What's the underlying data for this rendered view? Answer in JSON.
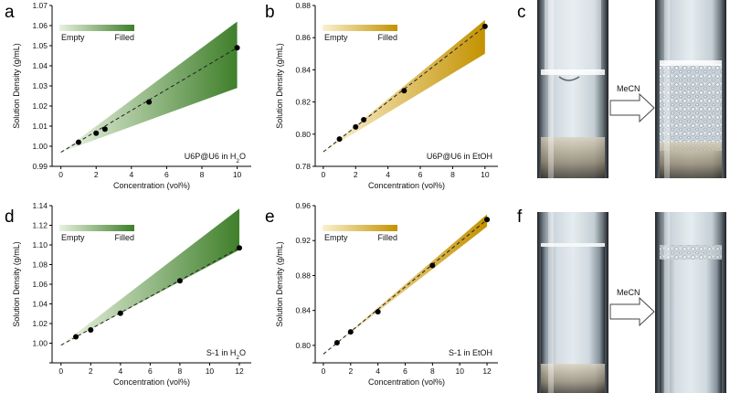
{
  "figure": {
    "colors": {
      "green_dark": "#3f7f2a",
      "green_light": "#e8f1df",
      "gold_dark": "#c49200",
      "gold_light": "#fbf1d0",
      "arrow_fill": "#ffffff",
      "arrow_stroke": "#444444"
    }
  },
  "chart_data": [
    {
      "id": "a",
      "panel_letter": "a",
      "type": "scatter",
      "theme": "green",
      "xlabel": "Concentration (vol%)",
      "ylabel": "Solution Density (g/mL)",
      "xlim": [
        -0.5,
        10.8
      ],
      "ylim": [
        0.99,
        1.07
      ],
      "xticks": [
        0,
        2,
        4,
        6,
        8,
        10
      ],
      "yticks": [
        0.99,
        1.0,
        1.01,
        1.02,
        1.03,
        1.04,
        1.05,
        1.06,
        1.07
      ],
      "ytick_labels": [
        "0.99",
        "1.00",
        "1.01",
        "1.02",
        "1.03",
        "1.04",
        "1.05",
        "1.06",
        "1.07"
      ],
      "x": [
        1,
        2,
        2.5,
        5,
        10
      ],
      "y": [
        1.002,
        1.0065,
        1.0085,
        1.022,
        1.049
      ],
      "fit_line": {
        "x": [
          0,
          10
        ],
        "y": [
          0.997,
          1.049
        ]
      },
      "region": {
        "x0": 0,
        "y0": 0.997,
        "x1": 10,
        "y_low": 1.029,
        "y_high": 1.062
      },
      "legend": {
        "empty": "Empty",
        "filled": "Filled"
      },
      "annotation": {
        "main": "U6P@U6 in H",
        "sub": "2",
        "tail": "O"
      }
    },
    {
      "id": "b",
      "panel_letter": "b",
      "type": "scatter",
      "theme": "gold",
      "xlabel": "Concentration (vol%)",
      "ylabel": "Solution Density (g/mL)",
      "xlim": [
        -0.5,
        10.8
      ],
      "ylim": [
        0.78,
        0.88
      ],
      "xticks": [
        0,
        2,
        4,
        6,
        8,
        10
      ],
      "yticks": [
        0.78,
        0.8,
        0.82,
        0.84,
        0.86,
        0.88
      ],
      "ytick_labels": [
        "0.78",
        "0.80",
        "0.82",
        "0.84",
        "0.86",
        "0.88"
      ],
      "x": [
        1,
        2,
        2.5,
        5,
        10
      ],
      "y": [
        0.797,
        0.8045,
        0.809,
        0.827,
        0.867
      ],
      "fit_line": {
        "x": [
          0,
          10
        ],
        "y": [
          0.789,
          0.867
        ]
      },
      "region": {
        "x0": 0,
        "y0": 0.789,
        "x1": 10,
        "y_low": 0.85,
        "y_high": 0.871
      },
      "legend": {
        "empty": "Empty",
        "filled": "Filled"
      },
      "annotation": {
        "main": "U6P@U6 in EtOH",
        "sub": "",
        "tail": ""
      }
    },
    {
      "id": "d",
      "panel_letter": "d",
      "type": "scatter",
      "theme": "green",
      "xlabel": "Concentration (vol%)",
      "ylabel": "Solution Density (g/mL)",
      "xlim": [
        -0.6,
        12.8
      ],
      "ylim": [
        0.98,
        1.14
      ],
      "xticks": [
        0,
        2,
        4,
        6,
        8,
        10,
        12
      ],
      "yticks": [
        0.98,
        1.0,
        1.02,
        1.04,
        1.06,
        1.08,
        1.1,
        1.12,
        1.14
      ],
      "ytick_labels": [
        "",
        "1.00",
        "1.02",
        "1.04",
        "1.06",
        "1.08",
        "1.10",
        "1.12",
        "1.14"
      ],
      "x": [
        1,
        2,
        4,
        8,
        12
      ],
      "y": [
        1.0065,
        1.0135,
        1.0305,
        1.0635,
        1.097
      ],
      "fit_line": {
        "x": [
          0,
          12
        ],
        "y": [
          0.998,
          1.097
        ]
      },
      "region": {
        "x0": 0,
        "y0": 0.998,
        "x1": 12,
        "y_low": 1.095,
        "y_high": 1.137
      },
      "legend": {
        "empty": "Empty",
        "filled": "Filled"
      },
      "annotation": {
        "main": "S-1 in H",
        "sub": "2",
        "tail": "O"
      }
    },
    {
      "id": "e",
      "panel_letter": "e",
      "type": "scatter",
      "theme": "gold",
      "xlabel": "Concentration (vol%)",
      "ylabel": "Solution Density (g/mL)",
      "xlim": [
        -0.6,
        12.8
      ],
      "ylim": [
        0.78,
        0.96
      ],
      "xticks": [
        0,
        2,
        4,
        6,
        8,
        10,
        12
      ],
      "yticks": [
        0.78,
        0.8,
        0.84,
        0.88,
        0.92,
        0.96
      ],
      "ytick_labels": [
        "",
        "0.80",
        "0.84",
        "0.88",
        "0.92",
        "0.96"
      ],
      "x": [
        1,
        2,
        4,
        8,
        12
      ],
      "y": [
        0.803,
        0.8155,
        0.8385,
        0.8915,
        0.944
      ],
      "fit_line": {
        "x": [
          0,
          12
        ],
        "y": [
          0.79,
          0.944
        ]
      },
      "region": {
        "x0": 0,
        "y0": 0.79,
        "x1": 12,
        "y_low": 0.936,
        "y_high": 0.95
      },
      "legend": {
        "empty": "Empty",
        "filled": "Filled"
      },
      "annotation": {
        "main": "S-1 in EtOH",
        "sub": "",
        "tail": ""
      }
    }
  ],
  "photos": {
    "c": {
      "panel_letter": "c",
      "arrow_label": "MeCN"
    },
    "f": {
      "panel_letter": "f",
      "arrow_label": "MeCN"
    }
  }
}
